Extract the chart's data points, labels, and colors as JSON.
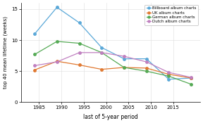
{
  "x": [
    1984,
    1989,
    1994,
    1999,
    2004,
    2009,
    2014,
    2019
  ],
  "billboard": [
    11.0,
    15.3,
    12.8,
    8.8,
    7.0,
    7.0,
    3.7,
    3.9
  ],
  "uk": [
    5.2,
    6.6,
    6.0,
    5.3,
    5.6,
    5.5,
    4.5,
    3.9
  ],
  "german": [
    7.7,
    9.8,
    9.5,
    8.0,
    5.6,
    5.0,
    4.2,
    2.9
  ],
  "dutch": [
    5.9,
    6.5,
    8.0,
    8.0,
    7.4,
    6.5,
    4.8,
    4.0
  ],
  "colors": {
    "billboard": "#5aa8d8",
    "uk": "#e07830",
    "german": "#55aa55",
    "dutch": "#c080c0"
  },
  "labels": {
    "billboard": "Billboard album charts",
    "uk": "UK album charts",
    "german": "German album charts",
    "dutch": "Dutch album charts"
  },
  "xlabel": "last of 5-year period",
  "ylabel": "top 40 mean lifetime (weeks)",
  "xlim": [
    1981,
    2021
  ],
  "ylim": [
    0,
    16
  ],
  "yticks": [
    0,
    5,
    10,
    15
  ],
  "xticks": [
    1985,
    1990,
    1995,
    2000,
    2005,
    2010,
    2015
  ],
  "grid_color": "#dddddd",
  "bg_color": "#ffffff"
}
